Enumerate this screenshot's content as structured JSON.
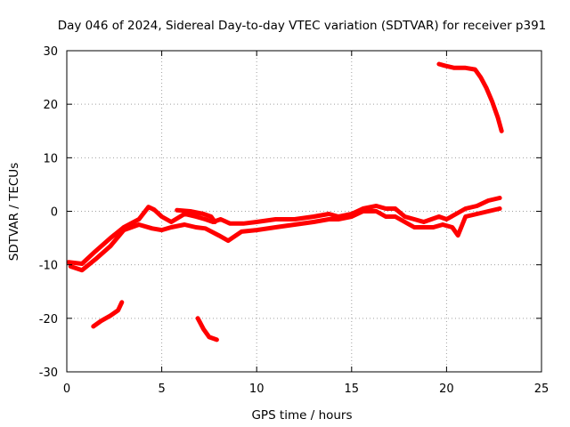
{
  "chart_data": {
    "type": "line",
    "title": "Day 046 of 2024, Sidereal Day-to-day VTEC variation (SDTVAR) for receiver p391",
    "xlabel": "GPS time / hours",
    "ylabel": "SDTVAR / TECUs",
    "xlim": [
      0,
      25
    ],
    "ylim": [
      -30,
      30
    ],
    "xticks": [
      0,
      5,
      10,
      15,
      20,
      25
    ],
    "yticks": [
      -30,
      -20,
      -10,
      0,
      10,
      20,
      30
    ],
    "grid": true,
    "color": "#ff0000",
    "series": [
      {
        "name": "main-band-upper",
        "x": [
          0.1,
          0.8,
          1.5,
          2.3,
          3.0,
          3.8,
          4.3,
          4.6,
          5.0,
          5.5,
          6.2,
          6.8,
          7.3,
          7.7,
          8.1,
          8.6,
          9.3,
          10.0,
          11.0,
          12.0,
          13.0,
          13.8,
          14.3,
          15.0,
          15.6,
          16.3,
          16.8,
          17.3,
          17.8,
          18.3,
          18.8,
          19.2,
          19.6,
          20.0,
          20.5,
          21.0,
          21.6,
          22.2,
          22.8
        ],
        "y": [
          -9.5,
          -9.8,
          -7.5,
          -5.0,
          -3.0,
          -1.5,
          0.8,
          0.3,
          -1.0,
          -2.0,
          -0.5,
          -1.0,
          -1.5,
          -2.0,
          -1.5,
          -2.3,
          -2.3,
          -2.0,
          -1.5,
          -1.5,
          -1.0,
          -0.5,
          -1.0,
          -0.5,
          0.5,
          1.0,
          0.5,
          0.5,
          -1.0,
          -1.5,
          -2.0,
          -1.5,
          -1.0,
          -1.5,
          -0.5,
          0.5,
          1.0,
          2.0,
          2.5
        ]
      },
      {
        "name": "main-band-lower",
        "x": [
          0.2,
          0.8,
          1.5,
          2.3,
          3.0,
          3.8,
          4.5,
          5.0,
          5.5,
          6.2,
          6.8,
          7.3,
          8.0,
          8.5,
          9.2,
          10.0,
          11.0,
          12.0,
          13.0,
          13.8,
          14.3,
          15.0,
          15.6,
          16.3,
          16.8,
          17.3,
          17.8,
          18.3,
          18.8,
          19.3,
          19.8,
          20.3,
          20.6,
          21.0,
          21.6,
          22.2,
          22.8
        ],
        "y": [
          -10.3,
          -11.0,
          -9.0,
          -6.5,
          -3.5,
          -2.5,
          -3.2,
          -3.5,
          -3.0,
          -2.5,
          -3.0,
          -3.2,
          -4.5,
          -5.5,
          -3.8,
          -3.5,
          -3.0,
          -2.5,
          -2.0,
          -1.5,
          -1.5,
          -1.0,
          0.0,
          0.0,
          -1.0,
          -1.0,
          -2.0,
          -3.0,
          -3.0,
          -3.0,
          -2.5,
          -3.0,
          -4.5,
          -1.0,
          -0.5,
          0.0,
          0.5
        ]
      },
      {
        "name": "arc-5-8h",
        "x": [
          5.8,
          6.5,
          7.2,
          7.6,
          7.8
        ],
        "y": [
          0.2,
          0.0,
          -0.5,
          -1.0,
          -2.0
        ]
      },
      {
        "name": "segment-1-3h",
        "x": [
          1.4,
          1.8,
          2.3,
          2.7,
          2.9
        ],
        "y": [
          -21.5,
          -20.5,
          -19.5,
          -18.5,
          -17.0
        ]
      },
      {
        "name": "segment-7-8h",
        "x": [
          6.9,
          7.2,
          7.5,
          7.9
        ],
        "y": [
          -20.0,
          -22.0,
          -23.5,
          -24.0
        ]
      },
      {
        "name": "segment-19-23h",
        "x": [
          19.6,
          19.9,
          20.4,
          21.0,
          21.5,
          21.8,
          22.1,
          22.4,
          22.7,
          22.9
        ],
        "y": [
          27.5,
          27.2,
          26.8,
          26.8,
          26.5,
          25.0,
          23.0,
          20.5,
          17.5,
          15.0
        ]
      }
    ]
  }
}
